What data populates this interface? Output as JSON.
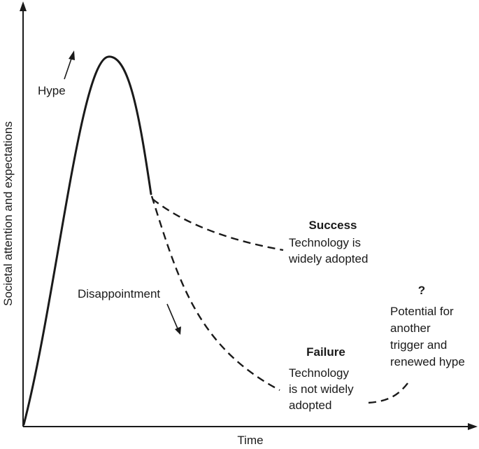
{
  "axes": {
    "y_label": "Societal attention and expectations",
    "x_label": "Time"
  },
  "labels": {
    "hype": "Hype",
    "disappointment": "Disappointment",
    "success_title": "Success",
    "success_line1": "Technology is",
    "success_line2": "widely adopted",
    "failure_title": "Failure",
    "failure_line1": "Technology",
    "failure_line2": "is not widely",
    "failure_line3": "adopted",
    "question_mark": "?",
    "renewed_line1": "Potential for",
    "renewed_line2": "another",
    "renewed_line3": "trigger and",
    "renewed_line4": "renewed hype"
  }
}
